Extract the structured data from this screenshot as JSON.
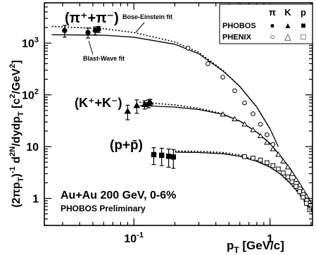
{
  "chart_data": {
    "type": "scatter",
    "title": "",
    "xlabel": "p_T [GeV/c]",
    "ylabel": "(2πp_T)^-1 d^2N/dydp_T [c^2/GeV^2]",
    "xscale": "log",
    "yscale": "log",
    "xlim": [
      0.022,
      2.05
    ],
    "ylim": [
      0.3,
      6000
    ],
    "xticks": [
      {
        "value": 0.1,
        "label": "10^-1"
      },
      {
        "value": 1,
        "label": "1"
      }
    ],
    "yticks": [
      {
        "value": 1,
        "label": "1"
      },
      {
        "value": 10,
        "label": "10"
      },
      {
        "value": 100,
        "label": "10^2"
      },
      {
        "value": 1000,
        "label": "10^3"
      }
    ],
    "annotations": {
      "main": "Au+Au 200 GeV, 0-6%",
      "sub": "PHOBOS Preliminary",
      "bose_einstein": "Bose-Einstein fit",
      "blast_wave": "Blast-Wave fit",
      "pion_label": "(π⁺+π⁻)",
      "kaon_label": "(K⁺+K⁻)",
      "proton_label": "(p+p̄)"
    },
    "legend": {
      "position": "top-right",
      "columns": [
        "π",
        "K",
        "p"
      ],
      "rows": [
        {
          "label": "PHOBOS",
          "symbols": [
            "●",
            "▲",
            "■"
          ]
        },
        {
          "label": "PHENIX",
          "symbols": [
            "○",
            "△",
            "□"
          ]
        }
      ]
    },
    "series": [
      {
        "name": "PHOBOS π",
        "marker": "filled-circle",
        "points": [
          {
            "x": 0.031,
            "y": 1750,
            "err": 450
          },
          {
            "x": 0.046,
            "y": 1600,
            "err": 350
          },
          {
            "x": 0.052,
            "y": 1750,
            "err": 300
          },
          {
            "x": 0.055,
            "y": 1850,
            "err": 250
          }
        ]
      },
      {
        "name": "PHENIX π",
        "marker": "open-circle",
        "points": [
          {
            "x": 0.25,
            "y": 800
          },
          {
            "x": 0.35,
            "y": 400
          },
          {
            "x": 0.45,
            "y": 220
          },
          {
            "x": 0.55,
            "y": 120
          },
          {
            "x": 0.65,
            "y": 70
          },
          {
            "x": 0.75,
            "y": 43
          },
          {
            "x": 0.85,
            "y": 27
          },
          {
            "x": 0.95,
            "y": 17
          },
          {
            "x": 1.05,
            "y": 11
          }
        ]
      },
      {
        "name": "PHOBOS K",
        "marker": "filled-triangle",
        "points": [
          {
            "x": 0.09,
            "y": 48,
            "err": 15
          },
          {
            "x": 0.105,
            "y": 62,
            "err": 18
          },
          {
            "x": 0.12,
            "y": 65,
            "err": 12
          },
          {
            "x": 0.128,
            "y": 68,
            "err": 12
          },
          {
            "x": 0.132,
            "y": 72,
            "err": 10
          }
        ]
      },
      {
        "name": "PHENIX K",
        "marker": "open-triangle",
        "points": [
          {
            "x": 0.45,
            "y": 42
          },
          {
            "x": 0.55,
            "y": 34
          },
          {
            "x": 0.65,
            "y": 27
          },
          {
            "x": 0.75,
            "y": 21
          },
          {
            "x": 0.85,
            "y": 16
          },
          {
            "x": 0.95,
            "y": 12
          },
          {
            "x": 1.05,
            "y": 9
          },
          {
            "x": 1.15,
            "y": 7
          },
          {
            "x": 1.25,
            "y": 5.2
          },
          {
            "x": 1.35,
            "y": 4
          },
          {
            "x": 1.45,
            "y": 3
          },
          {
            "x": 1.55,
            "y": 2.3
          },
          {
            "x": 1.65,
            "y": 1.8
          },
          {
            "x": 1.75,
            "y": 1.4
          },
          {
            "x": 1.85,
            "y": 1.1
          },
          {
            "x": 1.95,
            "y": 0.85
          }
        ]
      },
      {
        "name": "PHOBOS p",
        "marker": "filled-square",
        "points": [
          {
            "x": 0.14,
            "y": 7.0,
            "err": 2.5
          },
          {
            "x": 0.16,
            "y": 6.8,
            "err": 2.5
          },
          {
            "x": 0.18,
            "y": 6.5,
            "err": 2.5
          },
          {
            "x": 0.195,
            "y": 6.3,
            "err": 2.5
          }
        ]
      },
      {
        "name": "PHENIX p",
        "marker": "open-square",
        "points": [
          {
            "x": 0.65,
            "y": 6.4
          },
          {
            "x": 0.75,
            "y": 6.0
          },
          {
            "x": 0.85,
            "y": 5.5
          },
          {
            "x": 0.95,
            "y": 4.9
          },
          {
            "x": 1.05,
            "y": 4.3
          },
          {
            "x": 1.15,
            "y": 3.7
          },
          {
            "x": 1.25,
            "y": 3.1
          },
          {
            "x": 1.35,
            "y": 2.6
          },
          {
            "x": 1.45,
            "y": 2.1
          },
          {
            "x": 1.55,
            "y": 1.7
          },
          {
            "x": 1.65,
            "y": 1.35
          },
          {
            "x": 1.75,
            "y": 1.05
          },
          {
            "x": 1.85,
            "y": 0.8
          },
          {
            "x": 1.95,
            "y": 0.6
          }
        ]
      }
    ],
    "fits": [
      {
        "name": "Blast-Wave fit π",
        "style": "solid",
        "x": [
          0.025,
          0.06,
          0.1,
          0.2,
          0.3,
          0.45,
          0.6,
          0.8,
          1.0,
          1.15
        ],
        "y": [
          1450,
          1420,
          1300,
          950,
          620,
          290,
          145,
          58,
          22,
          10
        ]
      },
      {
        "name": "Bose-Einstein fit π",
        "style": "dotted",
        "x": [
          0.025,
          0.06,
          0.1,
          0.2,
          0.3,
          0.45,
          0.6,
          0.8,
          1.0
        ],
        "y": [
          2100,
          1900,
          1600,
          1050,
          660,
          300,
          145,
          58,
          22
        ]
      },
      {
        "name": "Blast-Wave fit K",
        "style": "solid",
        "x": [
          0.11,
          0.2,
          0.3,
          0.45,
          0.6,
          0.8,
          1.0,
          1.2,
          1.4,
          1.6,
          1.8,
          2.0
        ],
        "y": [
          62,
          58,
          52,
          42,
          31,
          19,
          11.5,
          6.5,
          3.8,
          2.2,
          1.3,
          0.8
        ]
      },
      {
        "name": "Bose-Einstein fit K",
        "style": "dotted",
        "x": [
          0.11,
          0.2,
          0.3,
          0.45,
          0.6,
          0.8,
          1.0,
          1.2,
          1.4,
          1.6
        ],
        "y": [
          72,
          64,
          55,
          43,
          31,
          19,
          11.5,
          6.5,
          3.8,
          2.2
        ]
      },
      {
        "name": "Blast-Wave fit p",
        "style": "solid",
        "x": [
          0.2,
          0.3,
          0.45,
          0.6,
          0.8,
          1.0,
          1.2,
          1.4,
          1.6,
          1.8,
          2.0
        ],
        "y": [
          7.8,
          7.7,
          7.3,
          6.5,
          5.2,
          4.0,
          2.9,
          2.0,
          1.35,
          0.9,
          0.6
        ]
      },
      {
        "name": "Bose-Einstein fit p",
        "style": "dotted",
        "x": [
          0.2,
          0.3,
          0.45,
          0.6,
          0.8,
          1.0,
          1.2,
          1.4,
          1.6,
          1.8,
          2.0
        ],
        "y": [
          8.2,
          8.1,
          7.7,
          6.9,
          5.4,
          4.1,
          2.9,
          1.95,
          1.3,
          0.85,
          0.55
        ]
      }
    ]
  }
}
